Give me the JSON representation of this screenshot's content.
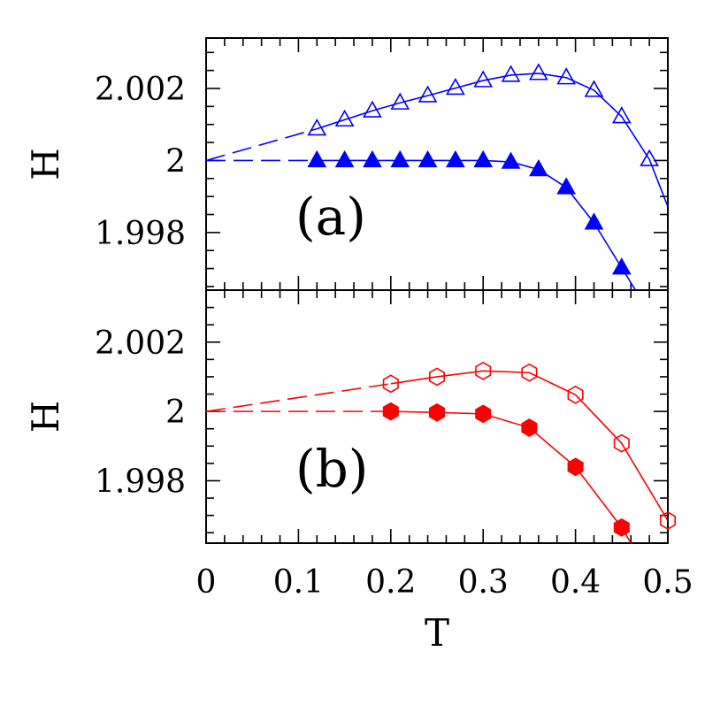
{
  "chart_data": {
    "type": "line",
    "xlabel": "T",
    "xlim": [
      0,
      0.5
    ],
    "x_ticks": [
      "0",
      "0.1",
      "0.2",
      "0.3",
      "0.4",
      "0.5"
    ],
    "grid": false,
    "panels": [
      {
        "panel_label": "(a)",
        "ylabel": "H",
        "ylim": [
          1.9964,
          2.0034
        ],
        "y_ticks": [
          "2.002",
          "2",
          "1.998"
        ],
        "y_tick_values": [
          2.002,
          2.0,
          1.998
        ],
        "series": [
          {
            "marker": "triangle-open",
            "color": "#0000ff",
            "x": [
              0.12,
              0.15,
              0.18,
              0.21,
              0.24,
              0.27,
              0.3,
              0.33,
              0.36,
              0.39,
              0.42,
              0.45,
              0.48
            ],
            "y": [
              2.00088,
              2.00113,
              2.00138,
              2.0016,
              2.0018,
              2.00201,
              2.00222,
              2.00237,
              2.00242,
              2.0023,
              2.00195,
              2.00122,
              2.00003
            ],
            "extrapolation": {
              "x": [
                0,
                0.12
              ],
              "y": [
                2.0,
                2.00088
              ]
            },
            "tail": {
              "x": [
                0.48,
                0.5
              ],
              "y": [
                2.00003,
                1.99872
              ]
            }
          },
          {
            "marker": "triangle-filled",
            "color": "#0000ff",
            "x": [
              0.12,
              0.15,
              0.18,
              0.21,
              0.24,
              0.27,
              0.3,
              0.33,
              0.36,
              0.39,
              0.42,
              0.45
            ],
            "y": [
              2.0,
              2.0,
              2.0,
              2.0,
              2.0,
              2.0,
              2.0,
              1.99996,
              1.99975,
              1.99925,
              1.99827,
              1.99702
            ],
            "extrapolation": {
              "x": [
                0,
                0.12
              ],
              "y": [
                2.0,
                2.0
              ]
            },
            "tail": {
              "x": [
                0.45,
                0.465
              ],
              "y": [
                1.99702,
                1.9964
              ]
            }
          }
        ]
      },
      {
        "panel_label": "(b)",
        "ylabel": "H",
        "ylim": [
          1.9962,
          2.0035
        ],
        "y_ticks": [
          "2.002",
          "2",
          "1.998"
        ],
        "y_tick_values": [
          2.002,
          2.0,
          1.998
        ],
        "series": [
          {
            "marker": "hexagon-open",
            "color": "#ff0000",
            "x": [
              0.2,
              0.25,
              0.3,
              0.35,
              0.4,
              0.45,
              0.5
            ],
            "y": [
              2.0008,
              2.001,
              2.00117,
              2.00112,
              2.00048,
              1.99908,
              1.99685
            ],
            "extrapolation": {
              "x": [
                0,
                0.2
              ],
              "y": [
                2.0,
                2.0008
              ]
            },
            "tail": {
              "x": [
                0.5,
                0.505
              ],
              "y": [
                1.99685,
                1.9962
              ]
            }
          },
          {
            "marker": "hexagon-filled",
            "color": "#ff0000",
            "x": [
              0.2,
              0.25,
              0.3,
              0.35,
              0.4,
              0.45
            ],
            "y": [
              2.0,
              1.99997,
              1.99993,
              1.99953,
              1.9984,
              1.99665
            ],
            "extrapolation": {
              "x": [
                0,
                0.2
              ],
              "y": [
                2.0,
                2.0
              ]
            },
            "tail": {
              "x": [
                0.45,
                0.46
              ],
              "y": [
                1.99665,
                1.9962
              ]
            }
          }
        ]
      }
    ]
  }
}
